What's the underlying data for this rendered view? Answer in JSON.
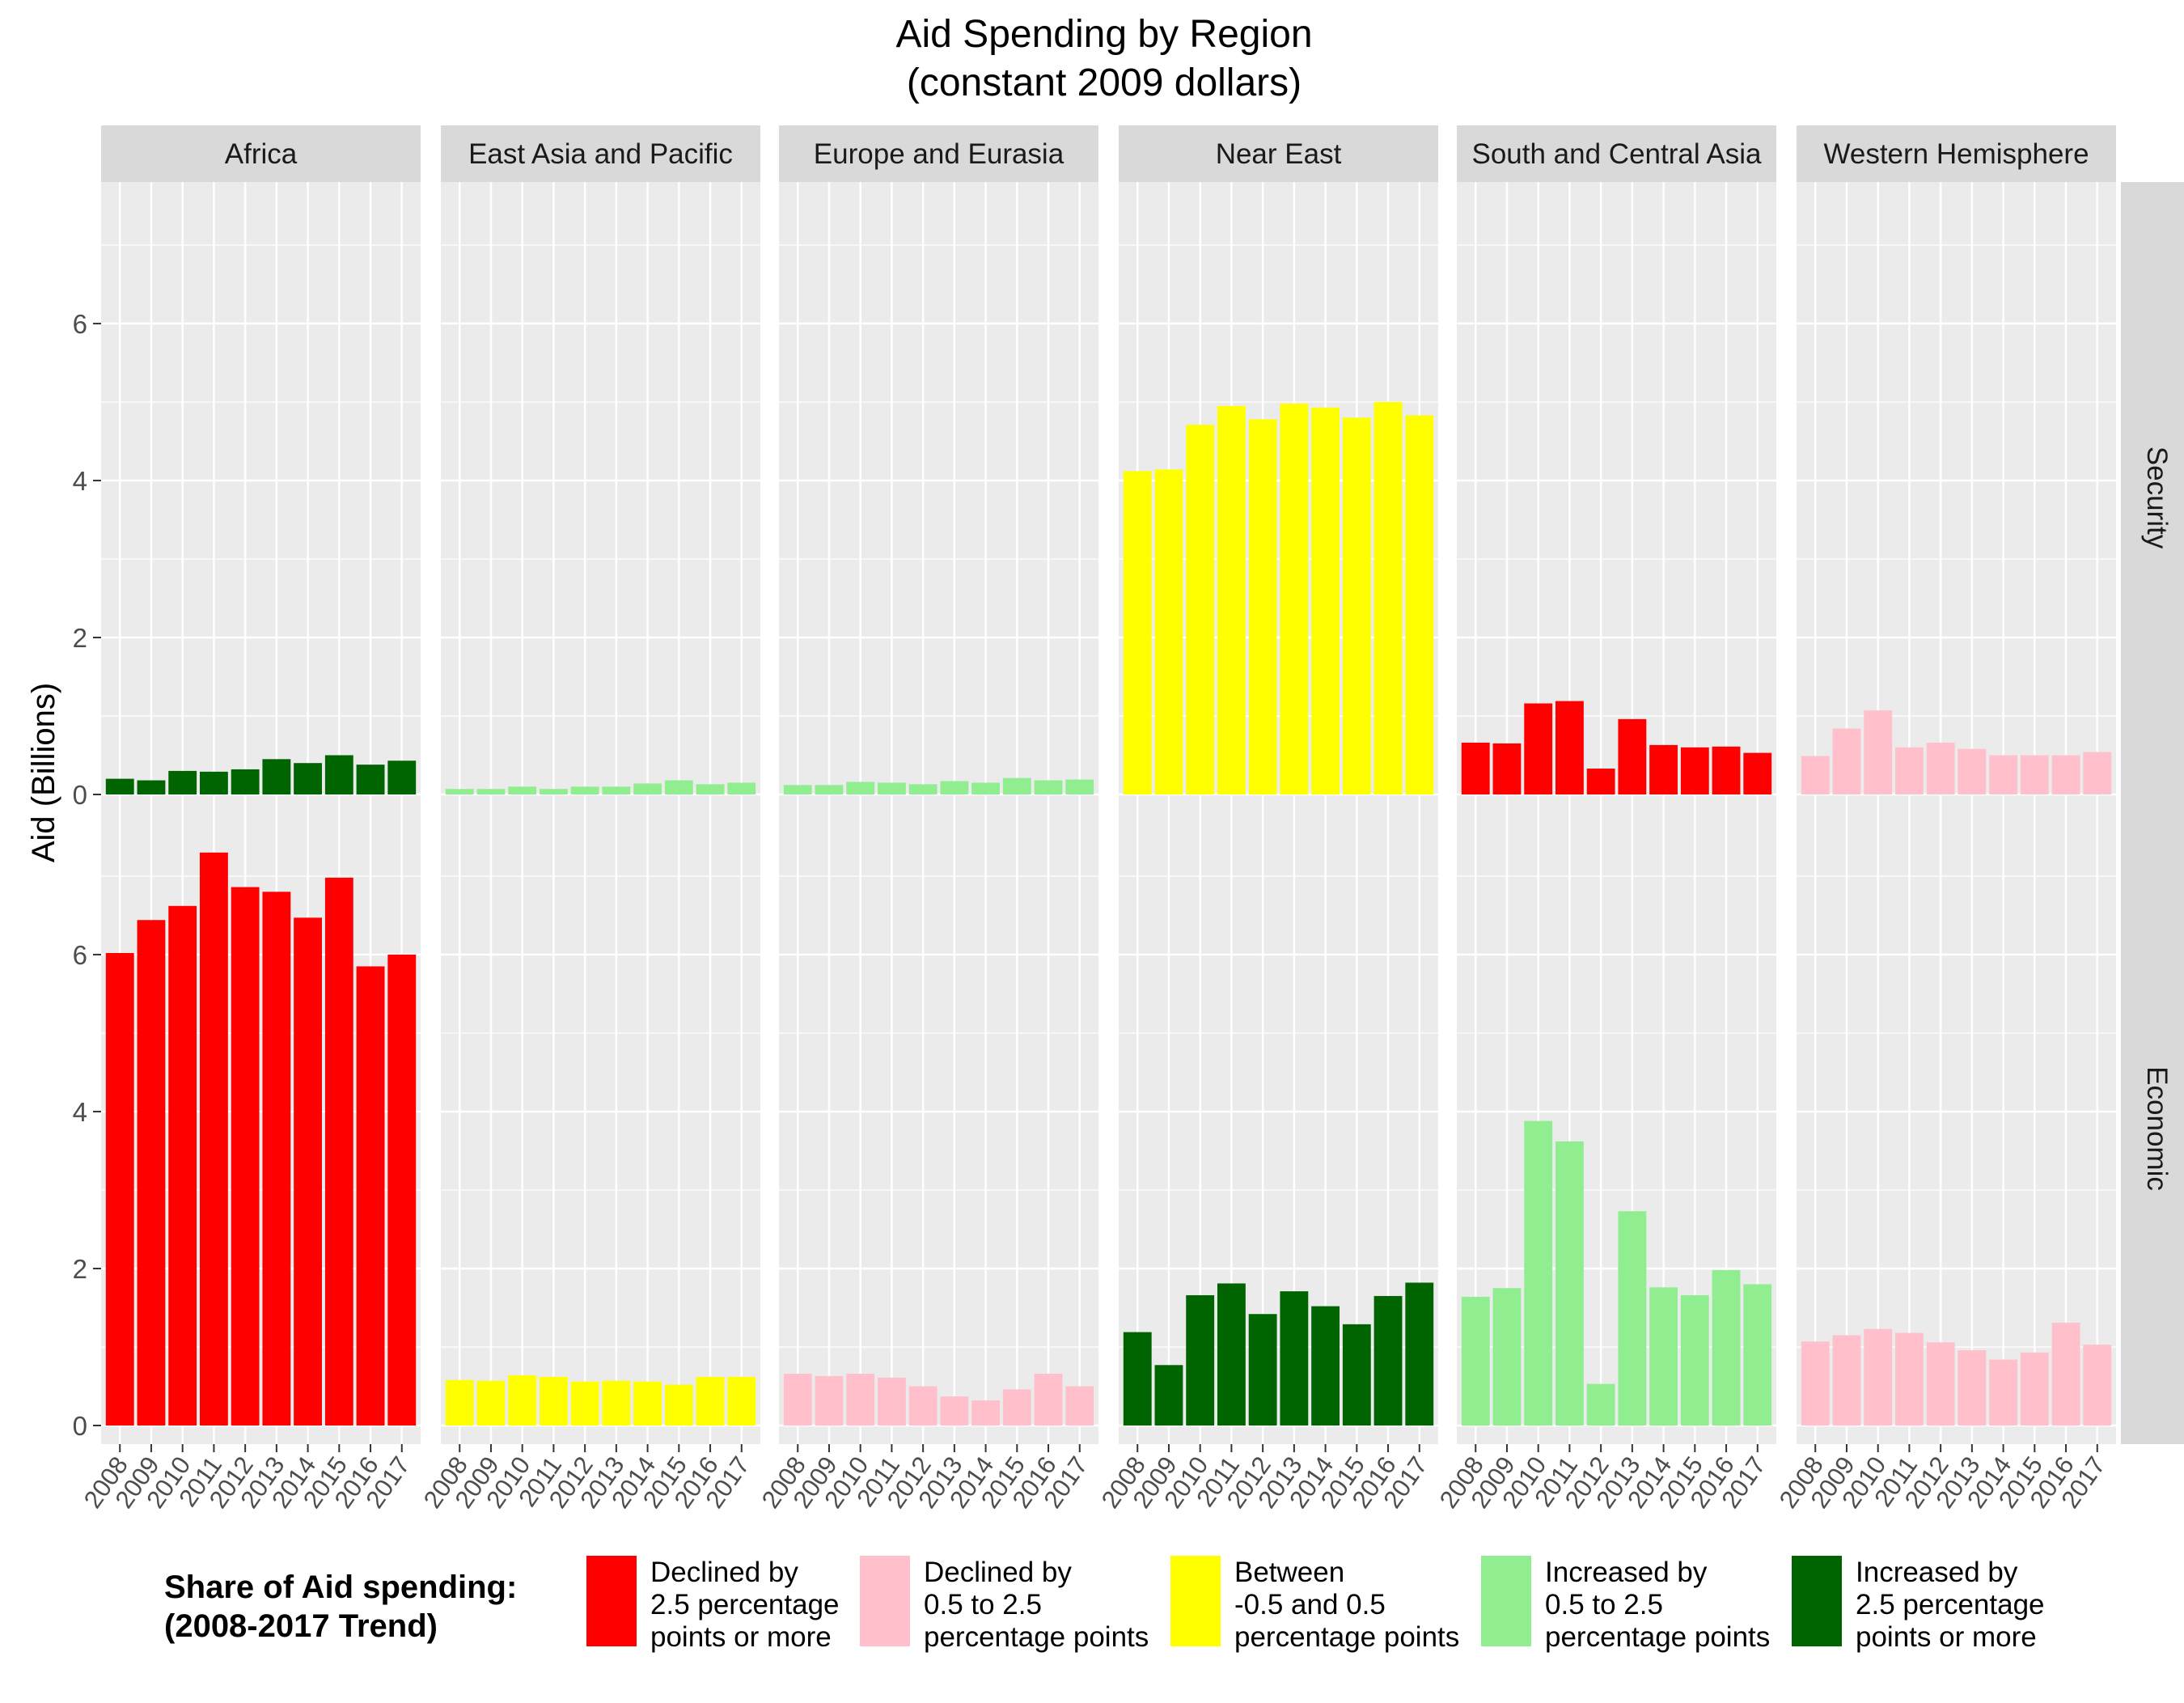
{
  "chart_data": {
    "type": "bar",
    "title_line1": "Aid Spending by Region",
    "title_line2": "(constant 2009 dollars)",
    "xlabel": "",
    "ylabel": "Aid (Billions)",
    "ylim": [
      0,
      7.7
    ],
    "y_ticks": [
      "0",
      "2",
      "4",
      "6"
    ],
    "grid": true,
    "years": [
      "2008",
      "2009",
      "2010",
      "2011",
      "2012",
      "2013",
      "2014",
      "2015",
      "2016",
      "2017"
    ],
    "legend": {
      "position": "bottom",
      "title_line1": "Share of Aid spending:",
      "title_line2": "(2008-2017 Trend)",
      "items": [
        {
          "key": "red",
          "color": "#ff0000",
          "line1": "Declined by",
          "line2": "2.5 percentage",
          "line3": "points or more"
        },
        {
          "key": "pink",
          "color": "#ffc0cb",
          "line1": "Declined by",
          "line2": "0.5 to 2.5",
          "line3": "percentage points"
        },
        {
          "key": "yellow",
          "color": "#ffff00",
          "line1": "Between",
          "line2": "-0.5 and 0.5",
          "line3": "percentage points"
        },
        {
          "key": "lightgreen",
          "color": "#90ee90",
          "line1": "Increased by",
          "line2": "0.5 to 2.5",
          "line3": "percentage points"
        },
        {
          "key": "darkgreen",
          "color": "#006400",
          "line1": "Increased by",
          "line2": "2.5 percentage",
          "line3": "points or more"
        }
      ]
    },
    "regions": [
      "Africa",
      "East Asia and Pacific",
      "Europe and Eurasia",
      "Near East",
      "South and Central Asia",
      "Western Hemisphere"
    ],
    "types": [
      "Security",
      "Economic"
    ],
    "series": [
      {
        "region": "Africa",
        "type": "Security",
        "trend": "darkgreen",
        "values": [
          0.2,
          0.18,
          0.3,
          0.29,
          0.32,
          0.45,
          0.4,
          0.5,
          0.38,
          0.43
        ]
      },
      {
        "region": "East Asia and Pacific",
        "type": "Security",
        "trend": "lightgreen",
        "values": [
          0.07,
          0.07,
          0.1,
          0.07,
          0.1,
          0.1,
          0.14,
          0.18,
          0.13,
          0.15
        ]
      },
      {
        "region": "Europe and Eurasia",
        "type": "Security",
        "trend": "lightgreen",
        "values": [
          0.12,
          0.12,
          0.16,
          0.15,
          0.13,
          0.17,
          0.15,
          0.21,
          0.18,
          0.19
        ]
      },
      {
        "region": "Near East",
        "type": "Security",
        "trend": "yellow",
        "values": [
          4.12,
          4.14,
          4.71,
          4.95,
          4.78,
          4.98,
          4.93,
          4.8,
          5.0,
          4.83
        ]
      },
      {
        "region": "South and Central Asia",
        "type": "Security",
        "trend": "red",
        "values": [
          0.66,
          0.65,
          1.16,
          1.19,
          0.33,
          0.96,
          0.63,
          0.6,
          0.61,
          0.53
        ]
      },
      {
        "region": "Western Hemisphere",
        "type": "Security",
        "trend": "pink",
        "values": [
          0.49,
          0.84,
          1.07,
          0.6,
          0.66,
          0.58,
          0.5,
          0.5,
          0.5,
          0.54
        ]
      },
      {
        "region": "Africa",
        "type": "Economic",
        "trend": "red",
        "values": [
          6.02,
          6.44,
          6.62,
          7.3,
          6.86,
          6.8,
          6.47,
          6.98,
          5.85,
          6.0
        ]
      },
      {
        "region": "East Asia and Pacific",
        "type": "Economic",
        "trend": "yellow",
        "values": [
          0.58,
          0.57,
          0.64,
          0.62,
          0.56,
          0.57,
          0.56,
          0.52,
          0.62,
          0.62
        ]
      },
      {
        "region": "Europe and Eurasia",
        "type": "Economic",
        "trend": "pink",
        "values": [
          0.66,
          0.63,
          0.66,
          0.61,
          0.5,
          0.37,
          0.32,
          0.46,
          0.66,
          0.5
        ]
      },
      {
        "region": "Near East",
        "type": "Economic",
        "trend": "darkgreen",
        "values": [
          1.19,
          0.77,
          1.66,
          1.81,
          1.42,
          1.71,
          1.52,
          1.29,
          1.65,
          1.82
        ]
      },
      {
        "region": "South and Central Asia",
        "type": "Economic",
        "trend": "lightgreen",
        "values": [
          1.64,
          1.75,
          3.88,
          3.62,
          0.53,
          2.73,
          1.76,
          1.66,
          1.98,
          1.8
        ]
      },
      {
        "region": "Western Hemisphere",
        "type": "Economic",
        "trend": "pink",
        "values": [
          1.07,
          1.15,
          1.23,
          1.18,
          1.06,
          0.96,
          0.84,
          0.93,
          1.31,
          1.03
        ]
      }
    ]
  }
}
